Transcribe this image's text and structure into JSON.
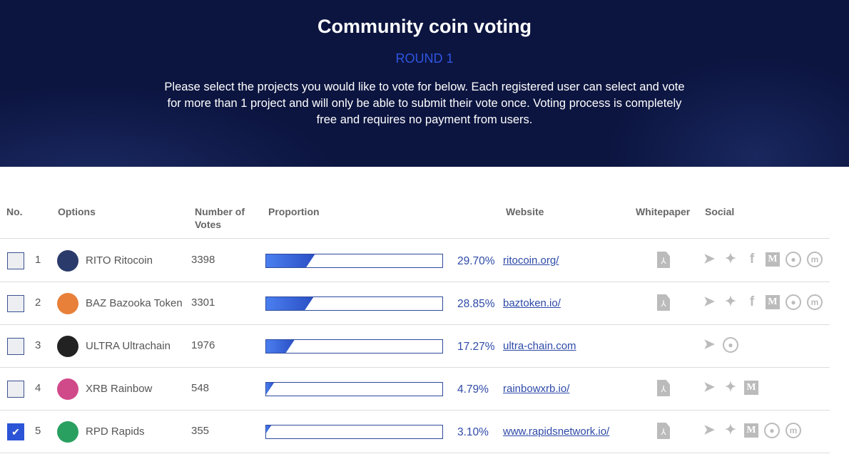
{
  "header": {
    "title": "Community coin voting",
    "round": "ROUND 1",
    "description": "Please select the projects you would like to vote for below. Each registered user can select and vote for more than 1 project and will only be able to submit their vote once. Voting process is completely free and requires no payment from users."
  },
  "table": {
    "columns": {
      "no": "No.",
      "options": "Options",
      "votes": "Number of Votes",
      "proportion": "Proportion",
      "website": "Website",
      "whitepaper": "Whitepaper",
      "social": "Social"
    },
    "rows": [
      {
        "no": "1",
        "symbol": "RITO",
        "name": "Ritocoin",
        "votes": "3398",
        "percent": "29.70%",
        "proportion": 29.7,
        "website": "ritocoin.org/",
        "checked": false,
        "whitepaper": true,
        "social": [
          "telegram",
          "twitter",
          "facebook",
          "medium",
          "bitcointalk",
          "coinmarketcap"
        ],
        "logo_color": "#2a3a6a"
      },
      {
        "no": "2",
        "symbol": "BAZ",
        "name": "Bazooka Token",
        "votes": "3301",
        "percent": "28.85%",
        "proportion": 28.85,
        "website": "baztoken.io/",
        "checked": false,
        "whitepaper": true,
        "social": [
          "telegram",
          "twitter",
          "facebook",
          "medium",
          "bitcointalk",
          "coinmarketcap"
        ],
        "logo_color": "#e8803a"
      },
      {
        "no": "3",
        "symbol": "ULTRA",
        "name": "Ultrachain",
        "votes": "1976",
        "percent": "17.27%",
        "proportion": 17.27,
        "website": "ultra-chain.com",
        "checked": false,
        "whitepaper": false,
        "social": [
          "telegram",
          "bitcointalk"
        ],
        "logo_color": "#222222"
      },
      {
        "no": "4",
        "symbol": "XRB",
        "name": "Rainbow",
        "votes": "548",
        "percent": "4.79%",
        "proportion": 4.79,
        "website": "rainbowxrb.io/",
        "checked": false,
        "whitepaper": true,
        "social": [
          "telegram",
          "twitter",
          "medium"
        ],
        "logo_color": "#d04a8a"
      },
      {
        "no": "5",
        "symbol": "RPD",
        "name": "Rapids",
        "votes": "355",
        "percent": "3.10%",
        "proportion": 3.1,
        "website": "www.rapidsnetwork.io/",
        "checked": true,
        "whitepaper": true,
        "social": [
          "telegram",
          "twitter",
          "medium",
          "bitcointalk",
          "coinmarketcap"
        ],
        "logo_color": "#2aa060"
      }
    ]
  }
}
